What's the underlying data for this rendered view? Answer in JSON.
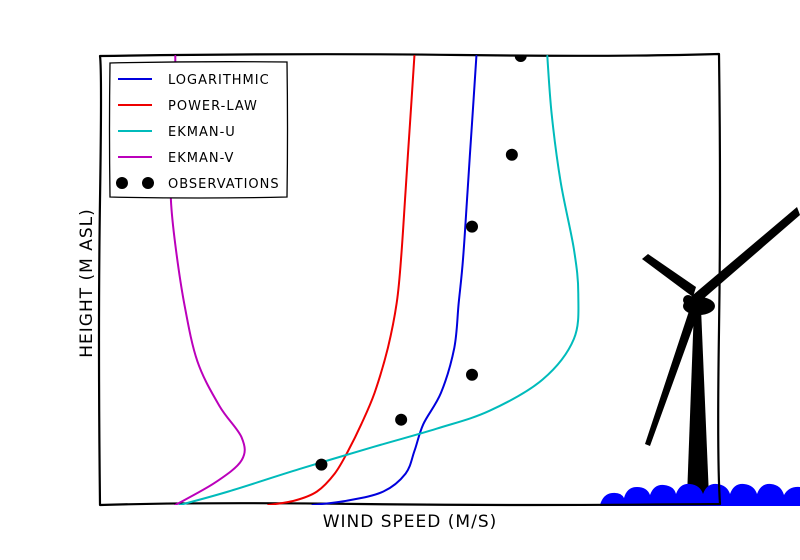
{
  "chart_data": {
    "type": "line",
    "title": "",
    "xlabel": "WIND SPEED (M/S)",
    "ylabel": "HEIGHT (M ASL)",
    "xlim": [
      0,
      14
    ],
    "ylim": [
      0,
      100
    ],
    "grid": false,
    "legend_position": "top-left",
    "series": [
      {
        "name": "LOGARITHMIC",
        "color": "#0000dd",
        "x": [
          4.8,
          5.6,
          6.4,
          6.9,
          7.1,
          7.3,
          7.7,
          8.0,
          8.1,
          8.2,
          8.3,
          8.4,
          8.5
        ],
        "y": [
          0,
          1,
          3,
          7,
          12,
          18,
          25,
          35,
          45,
          55,
          70,
          85,
          100
        ]
      },
      {
        "name": "POWER-LAW",
        "color": "#ee0000",
        "x": [
          3.8,
          4.4,
          4.9,
          5.3,
          5.6,
          5.9,
          6.2,
          6.5,
          6.7,
          6.8,
          6.9,
          7.0,
          7.1
        ],
        "y": [
          0,
          1,
          3,
          7,
          12,
          18,
          25,
          35,
          45,
          55,
          70,
          85,
          100
        ]
      },
      {
        "name": "EKMAN-U",
        "color": "#00bbbb",
        "x": [
          1.8,
          2.9,
          4.5,
          6.2,
          7.6,
          8.8,
          10.0,
          10.7,
          10.8,
          10.7,
          10.4,
          10.2,
          10.1
        ],
        "y": [
          0,
          3,
          8,
          13,
          17,
          21,
          28,
          37,
          47,
          57,
          72,
          87,
          100
        ]
      },
      {
        "name": "EKMAN-V",
        "color": "#bb00bb",
        "x": [
          1.7,
          2.6,
          3.2,
          3.2,
          2.7,
          2.2,
          1.9,
          1.7,
          1.6,
          1.6,
          1.7,
          1.7,
          1.7
        ],
        "y": [
          0,
          5,
          10,
          15,
          22,
          32,
          45,
          58,
          68,
          78,
          88,
          95,
          100
        ]
      },
      {
        "name": "OBSERVATIONS",
        "color": "#000000",
        "marker": "dot",
        "x": [
          5.0,
          6.8,
          8.4,
          8.4,
          9.3,
          9.5
        ],
        "y": [
          9,
          19,
          29,
          62,
          78,
          100
        ]
      }
    ]
  },
  "decoration": {
    "icon": "wind-turbine-icon",
    "turbine_color": "#000000",
    "sea_color": "#0000ff"
  }
}
